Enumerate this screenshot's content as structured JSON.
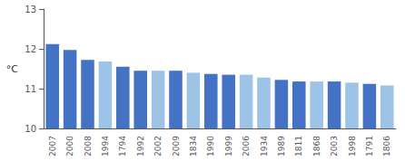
{
  "chart_data": {
    "type": "bar",
    "ylabel": "°C",
    "categories": [
      "2007",
      "2000",
      "2008",
      "1994",
      "1794",
      "1992",
      "2002",
      "2009",
      "1834",
      "1990",
      "1999",
      "2006",
      "1934",
      "1989",
      "1811",
      "1868",
      "2003",
      "1998",
      "1791",
      "1806"
    ],
    "values": [
      12.12,
      11.97,
      11.72,
      11.68,
      11.55,
      11.45,
      11.45,
      11.45,
      11.4,
      11.37,
      11.35,
      11.35,
      11.28,
      11.22,
      11.18,
      11.18,
      11.18,
      11.15,
      11.12,
      11.08
    ],
    "colors": [
      "#4472C4",
      "#4472C4",
      "#4472C4",
      "#9DC3E6",
      "#4472C4",
      "#4472C4",
      "#9DC3E6",
      "#4472C4",
      "#9DC3E6",
      "#4472C4",
      "#4472C4",
      "#9DC3E6",
      "#9DC3E6",
      "#4472C4",
      "#4472C4",
      "#9DC3E6",
      "#4472C4",
      "#9DC3E6",
      "#4472C4",
      "#9DC3E6"
    ],
    "ylim": [
      10,
      13
    ],
    "yticks": [
      10,
      11,
      12,
      13
    ],
    "grid": false
  }
}
